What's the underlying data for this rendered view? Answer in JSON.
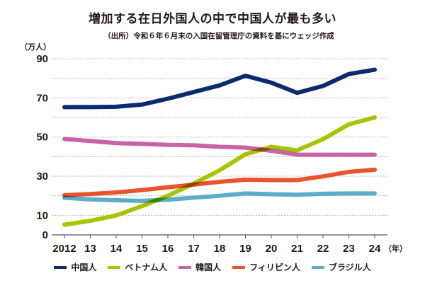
{
  "chart_data": {
    "type": "line",
    "title": "増加する在日外国人の中で中国人が最も多い",
    "subtitle": "（出所）令和６年６月末の入国在留管理庁の資料を基にウェッジ作成",
    "ylabel": "（万人）",
    "xlabel": "（年）",
    "ylim": [
      0,
      90
    ],
    "yticks": [
      0,
      10,
      30,
      50,
      70,
      90
    ],
    "gridlines": [
      10,
      20,
      30,
      40,
      50,
      60,
      70,
      80,
      90
    ],
    "grid": true,
    "x": [
      "2012",
      "13",
      "14",
      "15",
      "16",
      "17",
      "18",
      "19",
      "20",
      "21",
      "22",
      "23",
      "24"
    ],
    "legend_position": "bottom",
    "series": [
      {
        "name": "中国人",
        "color": "#0b2a6f",
        "values": [
          65.3,
          65.3,
          65.5,
          66.6,
          69.6,
          73.0,
          76.4,
          81.3,
          77.8,
          72.6,
          76.1,
          82.2,
          84.4
        ]
      },
      {
        "name": "ベトナム人",
        "color": "#a9c300",
        "values": [
          5.2,
          7.2,
          9.9,
          14.7,
          20.0,
          26.2,
          33.0,
          41.2,
          45.0,
          43.2,
          48.9,
          56.5,
          60.0
        ]
      },
      {
        "name": "韓国人",
        "color": "#c763a6",
        "values": [
          49.0,
          48.0,
          46.9,
          46.5,
          46.0,
          45.8,
          45.0,
          44.6,
          43.0,
          41.0,
          41.0,
          41.0,
          41.0
        ]
      },
      {
        "name": "フィリピン人",
        "color": "#e9542d",
        "values": [
          20.3,
          20.9,
          21.7,
          22.9,
          24.3,
          25.7,
          27.1,
          28.2,
          28.0,
          28.0,
          29.9,
          32.2,
          33.3
        ]
      },
      {
        "name": "ブラジル人",
        "color": "#5badc8",
        "values": [
          19.0,
          18.1,
          17.7,
          17.4,
          18.0,
          19.0,
          20.0,
          21.2,
          20.8,
          20.5,
          21.0,
          21.2,
          21.2
        ]
      }
    ]
  }
}
